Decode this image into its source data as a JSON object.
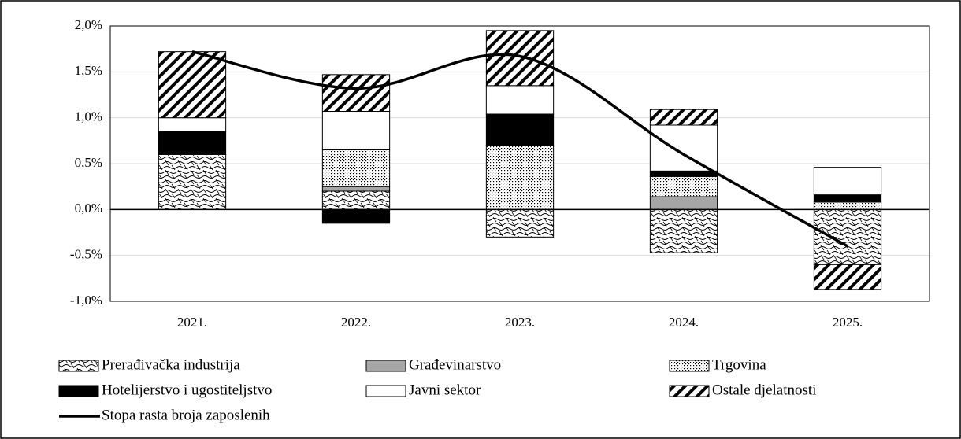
{
  "chart_data": {
    "type": "stacked-bar-line",
    "categories": [
      "2021.",
      "2022.",
      "2023.",
      "2024.",
      "2025."
    ],
    "series": [
      {
        "name": "Prerađivačka industrija",
        "color": "#000000",
        "values": [
          0.6,
          0.2,
          -0.3,
          -0.47,
          -0.6
        ]
      },
      {
        "name": "Građevinarstvo",
        "color": "#a6a6a6",
        "values": [
          0,
          0.05,
          0,
          0.14,
          0
        ]
      },
      {
        "name": "Trgovina",
        "color": "#000000",
        "values": [
          0,
          0.4,
          0.7,
          0.22,
          0.08
        ]
      },
      {
        "name": "Hotelijerstvo i ugostiteljstvo",
        "color": "#000000",
        "values": [
          0.25,
          -0.15,
          0.34,
          0.06,
          0.08
        ]
      },
      {
        "name": "Javni sektor",
        "color": "#ffffff",
        "values": [
          0.15,
          0.42,
          0.31,
          0.5,
          0.3
        ]
      },
      {
        "name": "Ostale djelatnosti",
        "color": "#000000",
        "values": [
          0.72,
          0.4,
          0.6,
          0.17,
          -0.27
        ]
      },
      {
        "name": "Stopa rasta broja zaposlenih",
        "color": "#000000",
        "type": "line",
        "values": [
          1.72,
          1.32,
          1.67,
          0.6,
          -0.4
        ]
      }
    ],
    "ylim": [
      -1.0,
      2.0
    ],
    "yticks": [
      {
        "value": -1.0,
        "label": "-1,0%"
      },
      {
        "value": -0.5,
        "label": "-0,5%"
      },
      {
        "value": 0,
        "label": "0,0%"
      },
      {
        "value": 0.5,
        "label": "0,5%"
      },
      {
        "value": 1.0,
        "label": "1,0%"
      },
      {
        "value": 1.5,
        "label": "1,5%"
      },
      {
        "value": 2.0,
        "label": "2,0%"
      }
    ],
    "grid": true
  }
}
